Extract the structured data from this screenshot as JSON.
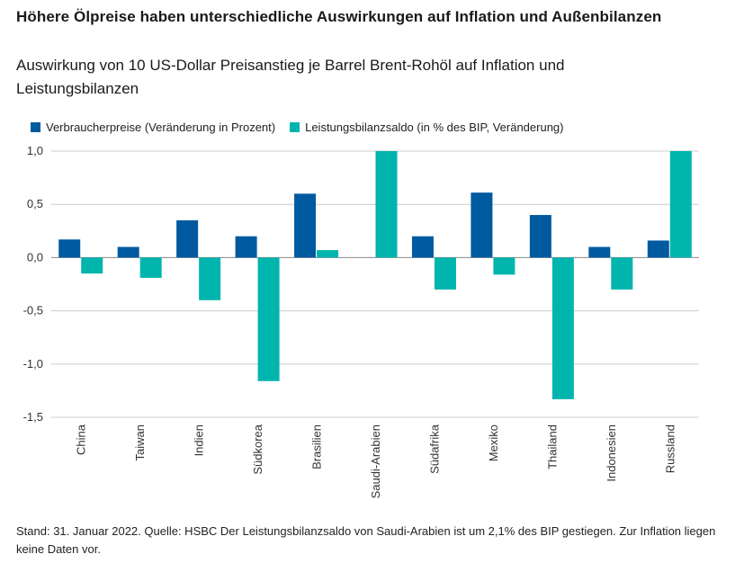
{
  "heading": "Höhere Ölpreise haben unterschiedliche Auswirkungen auf Inflation und Außenbilanzen",
  "colors": {
    "series1": "#005aa0",
    "series2": "#00b5ad",
    "grid": "#cccccc",
    "axis": "#333333"
  },
  "chart_data": {
    "type": "bar",
    "title": "Auswirkung von 10 US-Dollar Preisanstieg je Barrel Brent-Rohöl auf Inflation und Leistungsbilanzen",
    "xlabel": "",
    "ylabel": "",
    "ylim": [
      -1.5,
      1.0
    ],
    "yticks": [
      1.0,
      0.5,
      0.0,
      -0.5,
      -1.0,
      -1.5
    ],
    "ytick_labels": [
      "1,0",
      "0,5",
      "0,0",
      "-0,5",
      "-1,0",
      "-1,5"
    ],
    "grid": true,
    "legend_position": "top-left",
    "categories": [
      "China",
      "Taiwan",
      "Indien",
      "Südkorea",
      "Brasilien",
      "Saudi-Arabien",
      "Südafrika",
      "Mexiko",
      "Thailand",
      "Indonesien",
      "Russland"
    ],
    "series": [
      {
        "name": "Verbraucherpreise (Veränderung in Prozent)",
        "values": [
          0.17,
          0.1,
          0.35,
          0.2,
          0.6,
          null,
          0.2,
          0.61,
          0.4,
          0.1,
          0.16
        ]
      },
      {
        "name": "Leistungsbilanzsaldo (in % des BIP, Veränderung)",
        "values": [
          -0.15,
          -0.19,
          -0.4,
          -1.16,
          0.07,
          1.0,
          -0.3,
          -0.16,
          -1.33,
          -0.3,
          1.0
        ]
      }
    ]
  },
  "footnote": "Stand: 31. Januar 2022. Quelle: HSBC Der Leistungsbilanzsaldo von Saudi-Arabien ist um 2,1% des BIP gestiegen. Zur Inflation liegen keine Daten vor."
}
